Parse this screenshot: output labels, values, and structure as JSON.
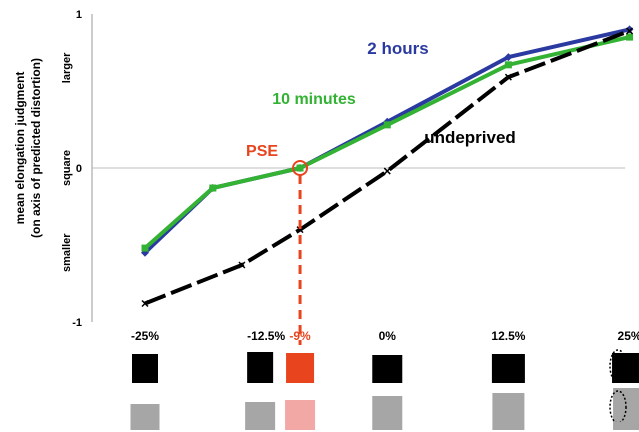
{
  "chart_data": {
    "type": "line",
    "ylabel": "mean elongation judgment",
    "ylabel2": "(on axis of predicted distortion)",
    "ylim": [
      -1,
      1
    ],
    "y_ticks": [
      "1",
      "0",
      "-1"
    ],
    "y_side_labels": [
      "larger",
      "square",
      "smaller"
    ],
    "x": [
      -25,
      -12.5,
      0,
      12.5,
      25
    ],
    "x_tick_labels": [
      "-25%",
      "-12.5%",
      "0%",
      "12.5%",
      "25%"
    ],
    "series": [
      {
        "name": "2 hours",
        "color": "#2b3aa0",
        "marker": "diamond",
        "style": "solid",
        "points": [
          [
            -25,
            -0.55
          ],
          [
            -18,
            -0.13
          ],
          [
            -9,
            0.0
          ],
          [
            0,
            0.3
          ],
          [
            12.5,
            0.72
          ],
          [
            25,
            0.9
          ]
        ]
      },
      {
        "name": "10 minutes",
        "color": "#33b233",
        "marker": "square",
        "style": "solid",
        "points": [
          [
            -25,
            -0.52
          ],
          [
            -18,
            -0.13
          ],
          [
            -9,
            0.0
          ],
          [
            0,
            0.28
          ],
          [
            12.5,
            0.67
          ],
          [
            25,
            0.85
          ]
        ]
      },
      {
        "name": "undeprived",
        "color": "#000000",
        "marker": "x",
        "style": "dashed",
        "points": [
          [
            -25,
            -0.88
          ],
          [
            -15,
            -0.63
          ],
          [
            -9,
            -0.4
          ],
          [
            0,
            -0.02
          ],
          [
            12.5,
            0.59
          ],
          [
            25,
            0.89
          ]
        ]
      }
    ],
    "pse": {
      "label": "PSE",
      "x": -9,
      "y": 0,
      "x_label": "-9%",
      "color": "#e8441e"
    }
  },
  "stimuli": {
    "black_color": "#000000",
    "gray_color": "#a6a6a6",
    "pse_black_color": "#e8441e",
    "pse_gray_color": "#f2a9a6",
    "ellipse_color": "#000000"
  }
}
